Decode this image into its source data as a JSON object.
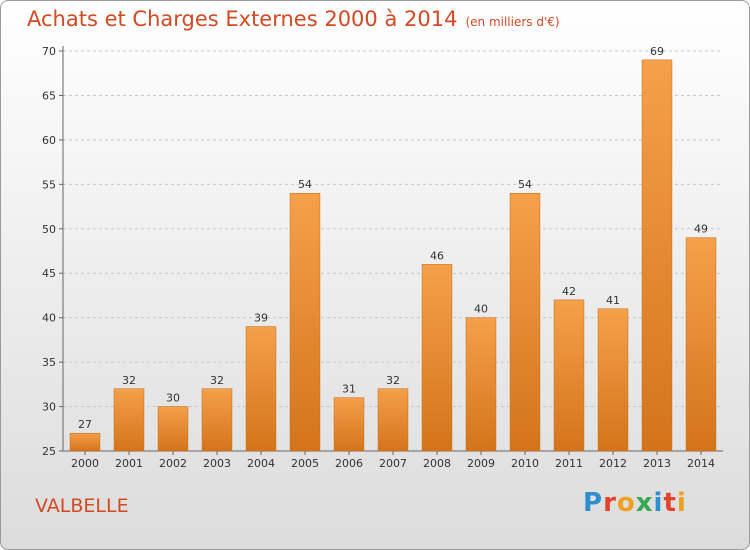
{
  "header": {
    "title": "Achats et Charges Externes 2000 à 2014",
    "unit": "(en milliers d'€)"
  },
  "footer": {
    "commune": "VALBELLE",
    "logo_letters": [
      "P",
      "r",
      "o",
      "x",
      "i",
      "t",
      "i"
    ],
    "logo_colors": [
      "#2e8fd0",
      "#e2432b",
      "#f0a020",
      "#34a853",
      "#2e8fd0",
      "#e2432b",
      "#f0a020"
    ]
  },
  "colors": {
    "bar_light": "#f5a04a",
    "bar_dark": "#d4741a",
    "accent": "#d24a22"
  },
  "chart_data": {
    "type": "bar",
    "categories": [
      "2000",
      "2001",
      "2002",
      "2003",
      "2004",
      "2005",
      "2006",
      "2007",
      "2008",
      "2009",
      "2010",
      "2011",
      "2012",
      "2013",
      "2014"
    ],
    "values": [
      27,
      32,
      30,
      32,
      39,
      54,
      31,
      32,
      46,
      40,
      54,
      42,
      41,
      69,
      49
    ],
    "ylim": [
      25,
      70
    ],
    "yticks": [
      "25",
      "30",
      "35",
      "40",
      "45",
      "50",
      "55",
      "60",
      "65",
      "70"
    ],
    "grid": true,
    "title": "Achats et Charges Externes 2000 à 2014",
    "ylabel": "",
    "xlabel": ""
  }
}
